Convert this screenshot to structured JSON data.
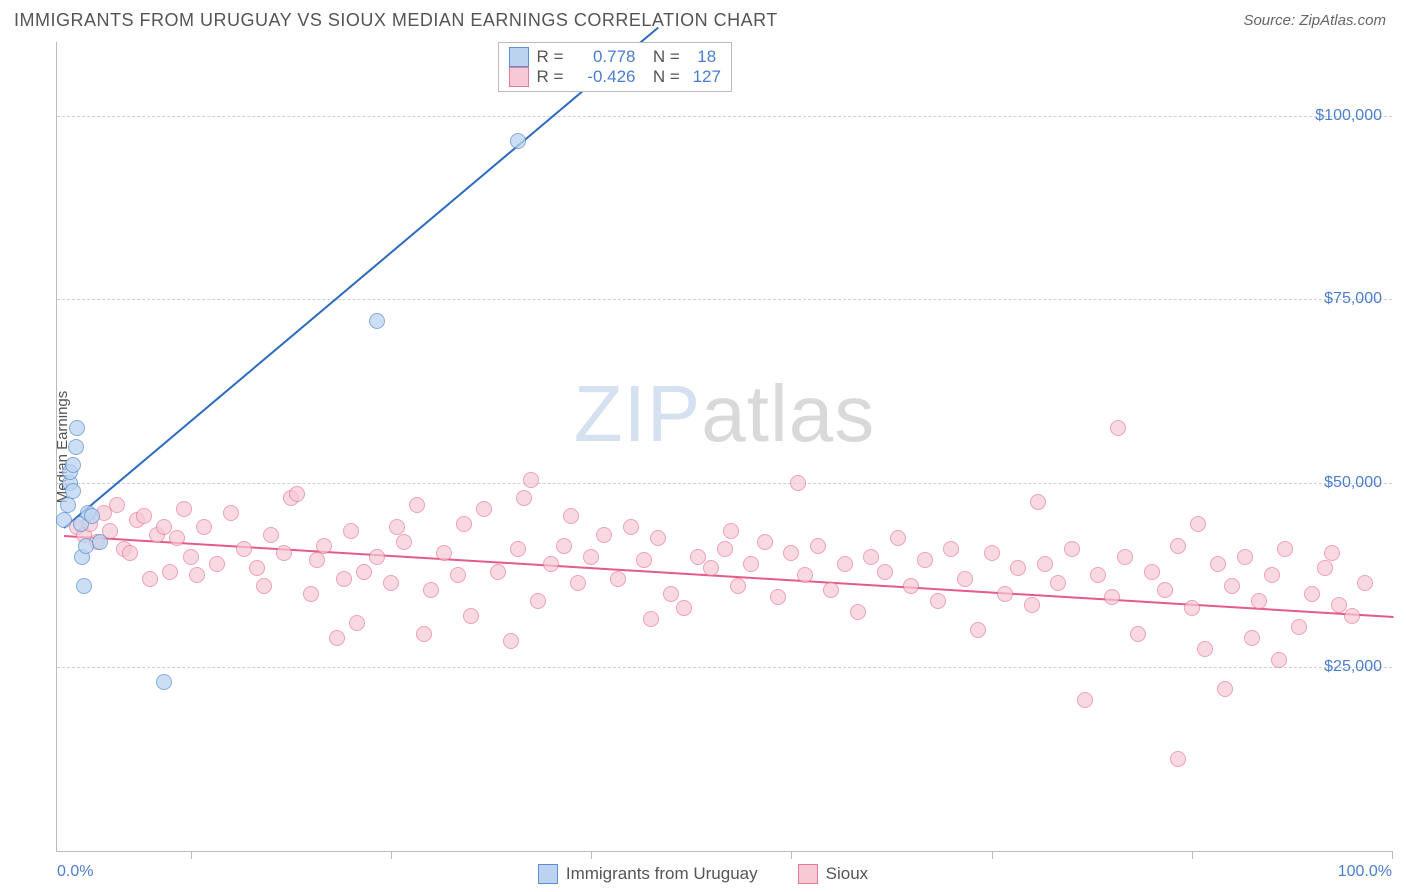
{
  "title": "IMMIGRANTS FROM URUGUAY VS SIOUX MEDIAN EARNINGS CORRELATION CHART",
  "source": "Source: ZipAtlas.com",
  "ylabel": "Median Earnings",
  "watermark_zip": "ZIP",
  "watermark_atlas": "atlas",
  "chart": {
    "type": "scatter",
    "background_color": "#ffffff",
    "grid_color": "#d0d0d0",
    "axis_color": "#bbbbbb",
    "tick_label_color": "#4a7ecf",
    "xlim": [
      0,
      100
    ],
    "ylim": [
      0,
      110000
    ],
    "ytick_values": [
      25000,
      50000,
      75000,
      100000
    ],
    "ytick_labels": [
      "$25,000",
      "$50,000",
      "$75,000",
      "$100,000"
    ],
    "xtick_positions": [
      10,
      25,
      40,
      55,
      70,
      85,
      100
    ],
    "x_left_label": "0.0%",
    "x_right_label": "100.0%",
    "marker_radius": 8,
    "marker_border_width": 1.5,
    "series": [
      {
        "name": "Immigrants from Uruguay",
        "fill_color": "#bcd3ef",
        "border_color": "#5b8fd1",
        "fill_opacity": 0.75,
        "r": 0.778,
        "n": 18,
        "trend": {
          "x1": 0.5,
          "y1": 44000,
          "x2": 45,
          "y2": 112000,
          "color": "#2b6bc0",
          "width": 2
        },
        "points": [
          [
            0.5,
            45000
          ],
          [
            0.8,
            47000
          ],
          [
            1.0,
            50000
          ],
          [
            1.0,
            51500
          ],
          [
            1.2,
            52500
          ],
          [
            1.2,
            49000
          ],
          [
            1.4,
            55000
          ],
          [
            1.5,
            57500
          ],
          [
            1.8,
            44500
          ],
          [
            1.9,
            40000
          ],
          [
            2.2,
            41500
          ],
          [
            2.0,
            36000
          ],
          [
            2.3,
            46000
          ],
          [
            2.6,
            45500
          ],
          [
            3.2,
            42000
          ],
          [
            8.0,
            23000
          ],
          [
            24.0,
            72000
          ],
          [
            34.5,
            96500
          ]
        ]
      },
      {
        "name": "Sioux",
        "fill_color": "#f7c9d5",
        "border_color": "#e67a9a",
        "fill_opacity": 0.7,
        "r": -0.426,
        "n": 127,
        "trend": {
          "x1": 0.5,
          "y1": 43000,
          "x2": 100,
          "y2": 32000,
          "color": "#e55a87",
          "width": 2
        },
        "points": [
          [
            1.5,
            44000
          ],
          [
            2.0,
            43000
          ],
          [
            2.5,
            44500
          ],
          [
            3.0,
            42000
          ],
          [
            3.5,
            46000
          ],
          [
            4.0,
            43500
          ],
          [
            4.5,
            47000
          ],
          [
            5.0,
            41000
          ],
          [
            5.5,
            40500
          ],
          [
            6.0,
            45000
          ],
          [
            6.5,
            45500
          ],
          [
            7.0,
            37000
          ],
          [
            7.5,
            43000
          ],
          [
            8.0,
            44000
          ],
          [
            8.5,
            38000
          ],
          [
            9.0,
            42500
          ],
          [
            9.5,
            46500
          ],
          [
            10.0,
            40000
          ],
          [
            10.5,
            37500
          ],
          [
            11.0,
            44000
          ],
          [
            12.0,
            39000
          ],
          [
            13.0,
            46000
          ],
          [
            14.0,
            41000
          ],
          [
            15.0,
            38500
          ],
          [
            15.5,
            36000
          ],
          [
            16.0,
            43000
          ],
          [
            17.0,
            40500
          ],
          [
            17.5,
            48000
          ],
          [
            18.0,
            48500
          ],
          [
            19.0,
            35000
          ],
          [
            19.5,
            39500
          ],
          [
            20.0,
            41500
          ],
          [
            21.0,
            29000
          ],
          [
            21.5,
            37000
          ],
          [
            22.0,
            43500
          ],
          [
            22.5,
            31000
          ],
          [
            23.0,
            38000
          ],
          [
            24.0,
            40000
          ],
          [
            25.0,
            36500
          ],
          [
            25.5,
            44000
          ],
          [
            26.0,
            42000
          ],
          [
            27.0,
            47000
          ],
          [
            27.5,
            29500
          ],
          [
            28.0,
            35500
          ],
          [
            29.0,
            40500
          ],
          [
            30.0,
            37500
          ],
          [
            30.5,
            44500
          ],
          [
            31.0,
            32000
          ],
          [
            32.0,
            46500
          ],
          [
            33.0,
            38000
          ],
          [
            34.0,
            28500
          ],
          [
            34.5,
            41000
          ],
          [
            35.0,
            48000
          ],
          [
            35.5,
            50500
          ],
          [
            36.0,
            34000
          ],
          [
            37.0,
            39000
          ],
          [
            38.0,
            41500
          ],
          [
            38.5,
            45500
          ],
          [
            39.0,
            36500
          ],
          [
            40.0,
            40000
          ],
          [
            41.0,
            43000
          ],
          [
            42.0,
            37000
          ],
          [
            43.0,
            44000
          ],
          [
            44.0,
            39500
          ],
          [
            44.5,
            31500
          ],
          [
            45.0,
            42500
          ],
          [
            46.0,
            35000
          ],
          [
            47.0,
            33000
          ],
          [
            48.0,
            40000
          ],
          [
            49.0,
            38500
          ],
          [
            50.0,
            41000
          ],
          [
            50.5,
            43500
          ],
          [
            51.0,
            36000
          ],
          [
            52.0,
            39000
          ],
          [
            53.0,
            42000
          ],
          [
            54.0,
            34500
          ],
          [
            55.0,
            40500
          ],
          [
            55.5,
            50000
          ],
          [
            56.0,
            37500
          ],
          [
            57.0,
            41500
          ],
          [
            58.0,
            35500
          ],
          [
            59.0,
            39000
          ],
          [
            60.0,
            32500
          ],
          [
            61.0,
            40000
          ],
          [
            62.0,
            38000
          ],
          [
            63.0,
            42500
          ],
          [
            64.0,
            36000
          ],
          [
            65.0,
            39500
          ],
          [
            66.0,
            34000
          ],
          [
            67.0,
            41000
          ],
          [
            68.0,
            37000
          ],
          [
            69.0,
            30000
          ],
          [
            70.0,
            40500
          ],
          [
            71.0,
            35000
          ],
          [
            72.0,
            38500
          ],
          [
            73.0,
            33500
          ],
          [
            73.5,
            47500
          ],
          [
            74.0,
            39000
          ],
          [
            75.0,
            36500
          ],
          [
            76.0,
            41000
          ],
          [
            77.0,
            20500
          ],
          [
            78.0,
            37500
          ],
          [
            79.0,
            34500
          ],
          [
            79.5,
            57500
          ],
          [
            80.0,
            40000
          ],
          [
            81.0,
            29500
          ],
          [
            82.0,
            38000
          ],
          [
            83.0,
            35500
          ],
          [
            84.0,
            41500
          ],
          [
            85.0,
            33000
          ],
          [
            85.5,
            44500
          ],
          [
            86.0,
            27500
          ],
          [
            87.0,
            39000
          ],
          [
            87.5,
            22000
          ],
          [
            88.0,
            36000
          ],
          [
            89.0,
            40000
          ],
          [
            89.5,
            29000
          ],
          [
            90.0,
            34000
          ],
          [
            91.0,
            37500
          ],
          [
            91.5,
            26000
          ],
          [
            92.0,
            41000
          ],
          [
            93.0,
            30500
          ],
          [
            94.0,
            35000
          ],
          [
            95.0,
            38500
          ],
          [
            95.5,
            40500
          ],
          [
            96.0,
            33500
          ],
          [
            97.0,
            32000
          ],
          [
            98.0,
            36500
          ],
          [
            84.0,
            12500
          ]
        ]
      }
    ]
  },
  "legend_stats": {
    "r_label": "R =",
    "n_label": "N ="
  },
  "bottom_legend": [
    {
      "label": "Immigrants from Uruguay",
      "fill": "#bcd3ef",
      "border": "#5b8fd1"
    },
    {
      "label": "Sioux",
      "fill": "#f7c9d5",
      "border": "#e67a9a"
    }
  ]
}
